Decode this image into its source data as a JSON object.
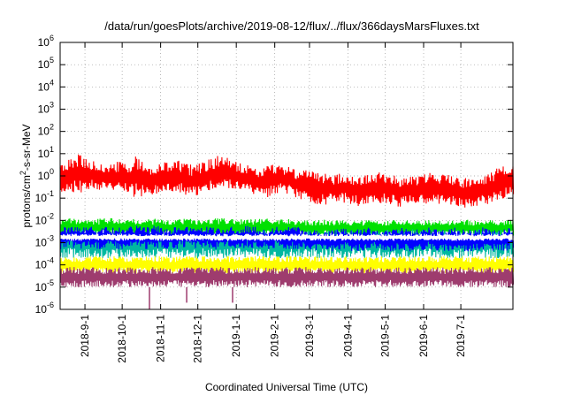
{
  "chart_data": {
    "type": "line",
    "title": "/data/run/goesPlots/archive/2019-08-12/flux/../flux/366daysMarsFluxes.txt",
    "xlabel": "Coordinated Universal Time (UTC)",
    "ylabel_main": "protons/cm",
    "ylabel_sup": "2",
    "ylabel_rest": "-s-sr-MeV",
    "x_start": "2018-08-12",
    "x_end": "2019-08-12",
    "x_ticks": [
      {
        "date": "2018-09-01",
        "label": "2018-9-1"
      },
      {
        "date": "2018-10-01",
        "label": "2018-10-1"
      },
      {
        "date": "2018-11-01",
        "label": "2018-11-1"
      },
      {
        "date": "2018-12-01",
        "label": "2018-12-1"
      },
      {
        "date": "2019-01-01",
        "label": "2019-1-1"
      },
      {
        "date": "2019-02-01",
        "label": "2019-2-1"
      },
      {
        "date": "2019-03-01",
        "label": "2019-3-1"
      },
      {
        "date": "2019-04-01",
        "label": "2019-4-1"
      },
      {
        "date": "2019-05-01",
        "label": "2019-5-1"
      },
      {
        "date": "2019-06-01",
        "label": "2019-6-1"
      },
      {
        "date": "2019-07-01",
        "label": "2019-7-1"
      }
    ],
    "y_scale": "log",
    "ylim": [
      1e-06,
      1000000.0
    ],
    "y_ticks": [
      {
        "value": 1e-06,
        "base": "10",
        "exp": "-6"
      },
      {
        "value": 1e-05,
        "base": "10",
        "exp": "-5"
      },
      {
        "value": 0.0001,
        "base": "10",
        "exp": "-4"
      },
      {
        "value": 0.001,
        "base": "10",
        "exp": "-3"
      },
      {
        "value": 0.01,
        "base": "10",
        "exp": "-2"
      },
      {
        "value": 0.1,
        "base": "10",
        "exp": "-1"
      },
      {
        "value": 1.0,
        "base": "10",
        "exp": "0"
      },
      {
        "value": 10.0,
        "base": "10",
        "exp": "1"
      },
      {
        "value": 100.0,
        "base": "10",
        "exp": "2"
      },
      {
        "value": 1000.0,
        "base": "10",
        "exp": "3"
      },
      {
        "value": 10000.0,
        "base": "10",
        "exp": "4"
      },
      {
        "value": 100000.0,
        "base": "10",
        "exp": "5"
      },
      {
        "value": 1000000.0,
        "base": "10",
        "exp": "6"
      }
    ],
    "grid": true,
    "series": [
      {
        "color": "#ff0000",
        "band_low": [
          0.15,
          0.2,
          0.15,
          0.25,
          0.2,
          0.3,
          0.15,
          0.15,
          0.1,
          0.1,
          0.15,
          0.2,
          0.2,
          0.15,
          0.1,
          0.15,
          0.2,
          0.2,
          0.25,
          0.2,
          0.15,
          0.1,
          0.1,
          0.15,
          0.15,
          0.1,
          0.08,
          0.05,
          0.05,
          0.06,
          0.06,
          0.05,
          0.04,
          0.05,
          0.06,
          0.05,
          0.04,
          0.05,
          0.05,
          0.06,
          0.05,
          0.05,
          0.04,
          0.03,
          0.04,
          0.05,
          0.06,
          0.1,
          0.15
        ],
        "band_high": [
          3,
          6,
          10,
          7,
          4,
          3,
          5,
          4,
          8,
          4,
          3,
          4,
          5,
          5,
          3,
          4,
          6,
          9,
          6,
          4,
          3,
          2,
          3,
          4,
          3,
          2,
          2,
          1.5,
          1.5,
          1,
          1.5,
          1,
          1,
          1.2,
          1.5,
          1.2,
          1,
          1,
          1,
          1.5,
          1.5,
          1.2,
          1,
          0.8,
          0.8,
          1,
          2,
          3,
          3
        ]
      },
      {
        "color": "#00e000",
        "band_low": [
          0.002,
          0.002,
          0.002,
          0.002,
          0.002,
          0.002,
          0.002,
          0.002,
          0.002,
          0.002,
          0.002,
          0.002,
          0.002,
          0.002,
          0.002,
          0.002,
          0.002,
          0.002,
          0.002,
          0.002,
          0.002,
          0.002,
          0.002,
          0.002,
          0.002,
          0.002,
          0.002,
          0.002,
          0.002,
          0.002,
          0.002,
          0.002,
          0.002,
          0.002,
          0.002,
          0.002,
          0.002,
          0.002,
          0.002,
          0.002,
          0.002,
          0.002,
          0.002,
          0.002,
          0.002,
          0.002,
          0.002,
          0.002,
          0.002
        ],
        "band_high": [
          0.012,
          0.013,
          0.012,
          0.011,
          0.012,
          0.013,
          0.012,
          0.011,
          0.012,
          0.011,
          0.012,
          0.012,
          0.011,
          0.012,
          0.012,
          0.011,
          0.012,
          0.013,
          0.012,
          0.012,
          0.011,
          0.012,
          0.012,
          0.011,
          0.012,
          0.011,
          0.01,
          0.01,
          0.011,
          0.01,
          0.011,
          0.01,
          0.01,
          0.011,
          0.01,
          0.011,
          0.01,
          0.01,
          0.011,
          0.01,
          0.011,
          0.01,
          0.01,
          0.011,
          0.01,
          0.011,
          0.01,
          0.01,
          0.011
        ]
      },
      {
        "color": "#00b8a0",
        "band_low": [
          0.0002,
          0.0002,
          0.0002,
          0.0002,
          0.0002,
          0.0002,
          0.0002,
          0.0002,
          0.0002,
          0.0002,
          0.0002,
          0.0002,
          0.0002,
          0.0002,
          0.0002,
          0.0002,
          0.0002,
          0.0002,
          0.0002,
          0.0002,
          0.0002,
          0.0002,
          0.0002,
          0.0002,
          0.0002,
          0.0002,
          0.0002,
          0.0002,
          0.0002,
          0.0002,
          0.0002,
          0.0002,
          0.0002,
          0.0002,
          0.0002,
          0.0002,
          0.0002,
          0.0002,
          0.0002,
          0.0002,
          0.0002,
          0.0002,
          0.0002,
          0.0002,
          0.0002,
          0.0002,
          0.0002,
          0.0002,
          0.0002
        ],
        "band_high": [
          0.004,
          0.004,
          0.004,
          0.004,
          0.004,
          0.004,
          0.004,
          0.004,
          0.004,
          0.004,
          0.004,
          0.004,
          0.004,
          0.004,
          0.004,
          0.004,
          0.004,
          0.004,
          0.004,
          0.004,
          0.004,
          0.004,
          0.004,
          0.004,
          0.004,
          0.004,
          0.004,
          0.004,
          0.004,
          0.004,
          0.004,
          0.004,
          0.004,
          0.004,
          0.004,
          0.004,
          0.004,
          0.004,
          0.004,
          0.004,
          0.004,
          0.004,
          0.004,
          0.004,
          0.004,
          0.004,
          0.004,
          0.004,
          0.004
        ]
      },
      {
        "color": "#0000ff",
        "band_low": [
          0.0005,
          0.0006,
          0.0005,
          0.0006,
          0.0005,
          0.0006,
          0.0005,
          0.0005,
          0.0006,
          0.0005,
          0.0006,
          0.0005,
          0.0005,
          0.0006,
          0.0005,
          0.0006,
          0.0005,
          0.0005,
          0.0006,
          0.0005,
          0.0006,
          0.0005,
          0.0005,
          0.0006,
          0.0005,
          0.0005,
          0.0005,
          0.0004,
          0.0004,
          0.0004,
          0.0005,
          0.0004,
          0.0004,
          0.0005,
          0.0004,
          0.0004,
          0.0005,
          0.0004,
          0.0004,
          0.0005,
          0.0004,
          0.0004,
          0.0005,
          0.0004,
          0.0004,
          0.0005,
          0.0004,
          0.0004,
          0.0005
        ],
        "band_high": [
          0.005,
          0.006,
          0.005,
          0.006,
          0.005,
          0.006,
          0.005,
          0.005,
          0.006,
          0.005,
          0.006,
          0.005,
          0.005,
          0.006,
          0.005,
          0.006,
          0.005,
          0.005,
          0.006,
          0.005,
          0.006,
          0.005,
          0.005,
          0.006,
          0.005,
          0.005,
          0.005,
          0.004,
          0.004,
          0.004,
          0.005,
          0.004,
          0.004,
          0.005,
          0.004,
          0.004,
          0.005,
          0.004,
          0.004,
          0.005,
          0.004,
          0.004,
          0.005,
          0.004,
          0.004,
          0.005,
          0.004,
          0.004,
          0.005
        ]
      },
      {
        "color": "#ffffff",
        "band_low": [
          0.0012,
          0.0012,
          0.0012,
          0.0012,
          0.0012,
          0.0012,
          0.0012,
          0.0012,
          0.0012,
          0.0012,
          0.0012,
          0.0012,
          0.0012,
          0.0012,
          0.0012,
          0.0012,
          0.0012,
          0.0012,
          0.0012,
          0.0012,
          0.0012,
          0.0012,
          0.0012,
          0.0012,
          0.0012,
          0.0012,
          0.0012,
          0.0012,
          0.0012,
          0.0012,
          0.0012,
          0.0012,
          0.0012,
          0.0012,
          0.0012,
          0.0012,
          0.0012,
          0.0012,
          0.0012,
          0.0012,
          0.0012,
          0.0012,
          0.0012,
          0.0012,
          0.0012,
          0.0012,
          0.0012,
          0.0012,
          0.0012
        ],
        "band_high": [
          0.0025,
          0.0025,
          0.0025,
          0.0025,
          0.0025,
          0.0025,
          0.0025,
          0.0025,
          0.0025,
          0.0025,
          0.0025,
          0.0025,
          0.0025,
          0.0025,
          0.0025,
          0.0025,
          0.0025,
          0.0025,
          0.0025,
          0.0025,
          0.0025,
          0.0025,
          0.0025,
          0.0025,
          0.0025,
          0.0025,
          0.0025,
          0.0025,
          0.0025,
          0.0025,
          0.0025,
          0.0025,
          0.0025,
          0.0025,
          0.0025,
          0.0025,
          0.0025,
          0.0025,
          0.0025,
          0.0025,
          0.0025,
          0.0025,
          0.0025,
          0.0025,
          0.0025,
          0.0025,
          0.0025,
          0.0025,
          0.0025
        ]
      },
      {
        "color": "#ffff00",
        "band_low": [
          4e-05,
          4e-05,
          4e-05,
          4e-05,
          4e-05,
          4e-05,
          4e-05,
          4e-05,
          4e-05,
          4e-05,
          4e-05,
          4e-05,
          4e-05,
          4e-05,
          4e-05,
          4e-05,
          4e-05,
          4e-05,
          4e-05,
          4e-05,
          4e-05,
          4e-05,
          4e-05,
          4e-05,
          4e-05,
          4e-05,
          4e-05,
          4e-05,
          4e-05,
          4e-05,
          4e-05,
          4e-05,
          4e-05,
          4e-05,
          4e-05,
          4e-05,
          4e-05,
          4e-05,
          4e-05,
          4e-05,
          4e-05,
          4e-05,
          4e-05,
          4e-05,
          4e-05,
          4e-05,
          4e-05,
          4e-05,
          4e-05
        ],
        "band_high": [
          0.00025,
          0.00025,
          0.00025,
          0.00025,
          0.00025,
          0.00025,
          0.00025,
          0.00025,
          0.00025,
          0.00025,
          0.00025,
          0.00025,
          0.00025,
          0.00025,
          0.00025,
          0.00025,
          0.00025,
          0.00025,
          0.00025,
          0.00025,
          0.00025,
          0.00025,
          0.00025,
          0.00025,
          0.00025,
          0.00025,
          0.00025,
          0.00025,
          0.00025,
          0.00025,
          0.00025,
          0.00025,
          0.00025,
          0.00025,
          0.00025,
          0.00025,
          0.00025,
          0.00025,
          0.00025,
          0.00025,
          0.00025,
          0.00025,
          0.00025,
          0.00025,
          0.00025,
          0.00025,
          0.00025,
          0.00025,
          0.00025
        ]
      },
      {
        "color": "#9e3c6e",
        "band_low": [
          1e-05,
          1e-05,
          1e-05,
          1e-05,
          1e-05,
          1e-05,
          1e-05,
          1e-05,
          1e-05,
          1e-05,
          1e-05,
          1e-05,
          1e-05,
          1e-05,
          1e-05,
          1e-05,
          1e-05,
          1e-05,
          1e-05,
          1e-05,
          1e-05,
          1e-05,
          1e-05,
          1e-05,
          1e-05,
          1e-05,
          1e-05,
          1e-05,
          1e-05,
          1e-05,
          1e-05,
          1e-05,
          1e-05,
          1e-05,
          1e-05,
          1e-05,
          1e-05,
          1e-05,
          1e-05,
          1e-05,
          1e-05,
          1e-05,
          1e-05,
          1e-05,
          1e-05,
          1e-05,
          1e-05,
          1e-05,
          1e-05
        ],
        "band_high": [
          8e-05,
          8e-05,
          8e-05,
          8e-05,
          8e-05,
          8e-05,
          8e-05,
          8e-05,
          8e-05,
          8e-05,
          8e-05,
          8e-05,
          8e-05,
          8e-05,
          8e-05,
          8e-05,
          8e-05,
          8e-05,
          8e-05,
          8e-05,
          8e-05,
          8e-05,
          8e-05,
          8e-05,
          8e-05,
          8e-05,
          8e-05,
          8e-05,
          8e-05,
          8e-05,
          8e-05,
          8e-05,
          8e-05,
          8e-05,
          8e-05,
          8e-05,
          8e-05,
          8e-05,
          8e-05,
          8e-05,
          8e-05,
          8e-05,
          8e-05,
          8e-05,
          8e-05,
          8e-05,
          8e-05,
          8e-05,
          8e-05
        ],
        "dips": [
          {
            "date": "2018-10-23",
            "value": 1e-06
          },
          {
            "date": "2018-11-22",
            "value": 2e-06
          },
          {
            "date": "2018-12-29",
            "value": 2e-06
          }
        ]
      }
    ]
  }
}
